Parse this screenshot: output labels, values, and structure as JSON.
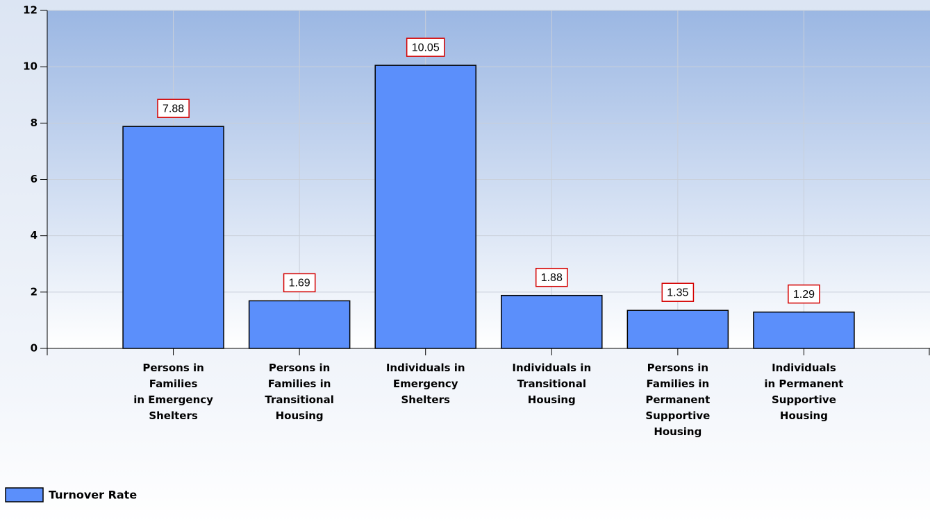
{
  "chart_data": {
    "type": "bar",
    "categories": [
      "Persons in\nFamilies\nin Emergency\nShelters",
      "Persons in\nFamilies in\nTransitional\nHousing",
      "Individuals in\nEmergency\nShelters",
      "Individuals in\nTransitional\nHousing",
      "Persons in\nFamilies in\nPermanent\nSupportive\nHousing",
      "Individuals\nin Permanent\nSupportive\nHousing"
    ],
    "series": [
      {
        "name": "Turnover Rate",
        "color": "#5b8ffb",
        "values": [
          7.88,
          1.69,
          10.05,
          1.88,
          1.35,
          1.29
        ]
      }
    ],
    "ylim": [
      0,
      12
    ],
    "yticks": [
      0,
      2,
      4,
      6,
      8,
      10,
      12
    ],
    "grid": true,
    "legend": "bottom-left"
  }
}
